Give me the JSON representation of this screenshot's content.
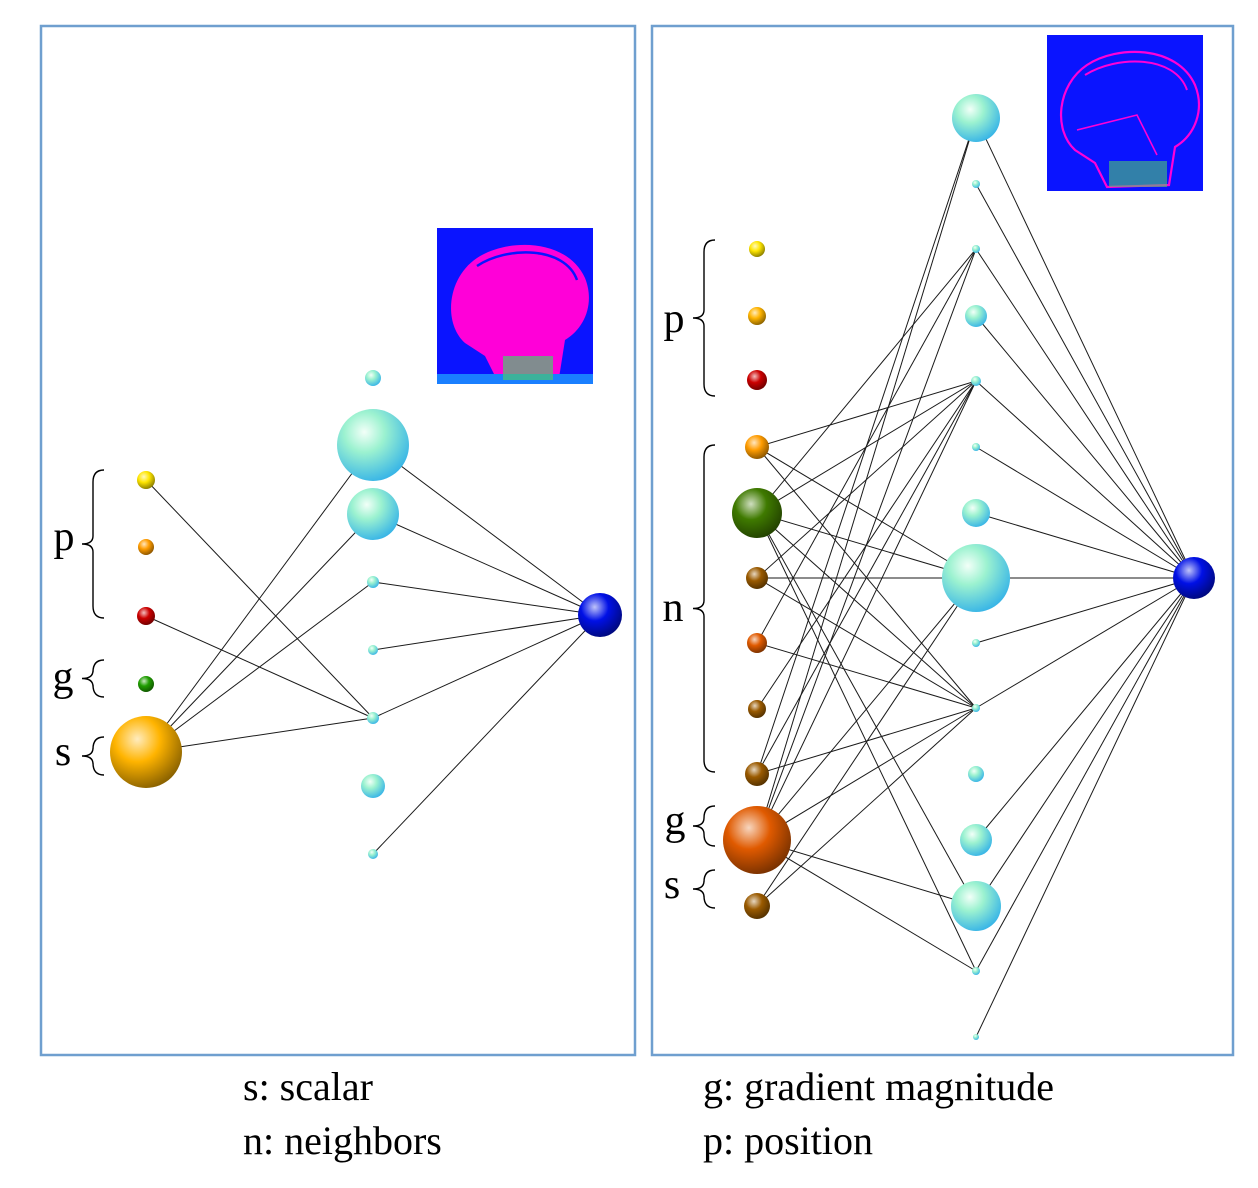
{
  "legend": {
    "scalar": "s: scalar",
    "neighbors": "n: neighbors",
    "gradient": "g: gradient magnitude",
    "position": "p: position"
  },
  "colors": {
    "panel_border": "#6f9fcf",
    "yellow": "#ffe600",
    "orange": "#ff9c00",
    "red": "#cc0000",
    "green": "#1f9e00",
    "gold": "#ffb400",
    "cyan": "#80ffe0",
    "blue": "#0010e6",
    "dark_green": "#3f7a00",
    "brown": "#9a5a00",
    "dark_orange": "#e05a00",
    "thumb_bg": "#0a14ff",
    "thumb_fg": "#ff00d8"
  },
  "panels": [
    {
      "name": "left",
      "thumbnail": "head-scan-scalar-thumbnail",
      "groups": [
        {
          "label": "p",
          "inputs": [
            "yellow",
            "orange",
            "red"
          ]
        },
        {
          "label": "g",
          "inputs": [
            "green"
          ]
        },
        {
          "label": "s",
          "inputs": [
            "gold"
          ]
        }
      ],
      "hidden_nodes": 8,
      "outputs": 1
    },
    {
      "name": "right",
      "thumbnail": "head-scan-gradient-thumbnail",
      "groups": [
        {
          "label": "p",
          "inputs": [
            "yellow",
            "gold",
            "red"
          ]
        },
        {
          "label": "n",
          "inputs": [
            "orange",
            "dark_green",
            "brown",
            "dark_orange",
            "brown",
            "brown"
          ]
        },
        {
          "label": "g",
          "inputs": [
            "dark_orange"
          ]
        },
        {
          "label": "s",
          "inputs": [
            "brown"
          ]
        }
      ],
      "hidden_nodes": 15,
      "outputs": 1
    }
  ]
}
